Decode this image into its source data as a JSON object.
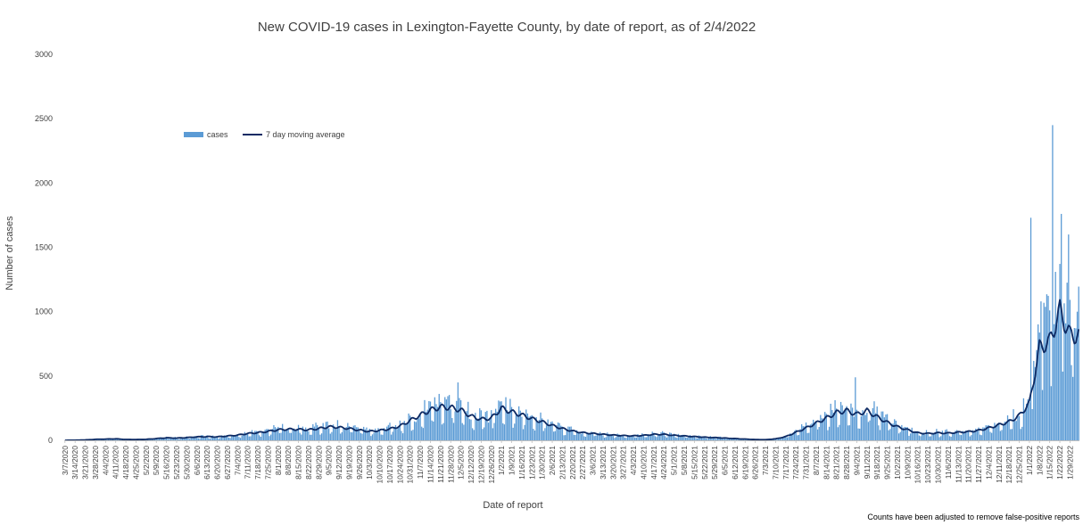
{
  "chart_data": {
    "type": "bar",
    "title": "New COVID-19 cases in Lexington-Fayette County, by date of report, as of 2/4/2022",
    "xlabel": "Date of report",
    "ylabel": "Number of cases",
    "ylim": [
      0,
      3000
    ],
    "yticks": [
      "0",
      "500",
      "1000",
      "1500",
      "2000",
      "2500",
      "3000"
    ],
    "footnote": "Counts have been adjusted to remove false-positive reports",
    "legend": {
      "placement": "upper-left",
      "bar_label": "cases",
      "line_label": "7 day moving average"
    },
    "colors": {
      "bars": "#5b9bd5",
      "line": "#0d2a63"
    },
    "x_start": "3/7/2020",
    "x_end": "2/4/2022",
    "xtick_labels": [
      "3/7/2020",
      "3/14/2020",
      "3/21/2020",
      "3/28/2020",
      "4/4/2020",
      "4/11/2020",
      "4/18/2020",
      "4/25/2020",
      "5/2/2020",
      "5/9/2020",
      "5/16/2020",
      "5/23/2020",
      "5/30/2020",
      "6/6/2020",
      "6/13/2020",
      "6/20/2020",
      "6/27/2020",
      "7/4/2020",
      "7/11/2020",
      "7/18/2020",
      "7/25/2020",
      "8/1/2020",
      "8/8/2020",
      "8/15/2020",
      "8/22/2020",
      "8/29/2020",
      "9/5/2020",
      "9/12/2020",
      "9/19/2020",
      "9/26/2020",
      "10/3/2020",
      "10/10/2020",
      "10/17/2020",
      "10/24/2020",
      "10/31/2020",
      "11/7/2020",
      "11/14/2020",
      "11/21/2020",
      "11/28/2020",
      "12/5/2020",
      "12/12/2020",
      "12/19/2020",
      "12/26/2020",
      "1/2/2021",
      "1/9/2021",
      "1/16/2021",
      "1/23/2021",
      "1/30/2021",
      "2/6/2021",
      "2/13/2021",
      "2/20/2021",
      "2/27/2021",
      "3/6/2021",
      "3/13/2021",
      "3/20/2021",
      "3/27/2021",
      "4/3/2021",
      "4/10/2021",
      "4/17/2021",
      "4/24/2021",
      "5/1/2021",
      "5/8/2021",
      "5/15/2021",
      "5/22/2021",
      "5/29/2021",
      "6/5/2021",
      "6/12/2021",
      "6/19/2021",
      "6/26/2021",
      "7/3/2021",
      "7/10/2021",
      "7/17/2021",
      "7/24/2021",
      "7/31/2021",
      "8/7/2021",
      "8/14/2021",
      "8/21/2021",
      "8/28/2021",
      "9/4/2021",
      "9/11/2021",
      "9/18/2021",
      "9/25/2021",
      "10/2/2021",
      "10/9/2021",
      "10/16/2021",
      "10/23/2021",
      "10/30/2021",
      "11/6/2021",
      "11/13/2021",
      "11/20/2021",
      "11/27/2021",
      "12/4/2021",
      "12/11/2021",
      "12/18/2021",
      "12/25/2021",
      "1/1/2022",
      "1/8/2022",
      "1/15/2022",
      "1/22/2022",
      "1/29/2022"
    ],
    "weekly_anchor_cases": [
      0,
      1,
      3,
      8,
      10,
      12,
      7,
      6,
      8,
      14,
      20,
      18,
      22,
      28,
      30,
      28,
      35,
      42,
      55,
      62,
      72,
      85,
      90,
      88,
      85,
      95,
      110,
      105,
      95,
      82,
      72,
      80,
      92,
      115,
      160,
      205,
      245,
      270,
      265,
      245,
      195,
      170,
      180,
      260,
      230,
      205,
      175,
      150,
      120,
      95,
      75,
      62,
      55,
      48,
      42,
      38,
      36,
      40,
      48,
      48,
      40,
      35,
      30,
      25,
      22,
      18,
      14,
      10,
      6,
      5,
      12,
      30,
      65,
      100,
      140,
      180,
      225,
      240,
      210,
      240,
      190,
      145,
      110,
      85,
      60,
      55,
      60,
      58,
      65,
      70,
      80,
      100,
      125,
      150,
      200,
      300,
      750,
      880,
      1000,
      950
    ],
    "weekly_anchor_avg": [
      0,
      1,
      3,
      8,
      10,
      12,
      7,
      6,
      8,
      14,
      20,
      18,
      22,
      28,
      30,
      28,
      35,
      42,
      55,
      62,
      72,
      85,
      90,
      88,
      85,
      95,
      110,
      105,
      95,
      82,
      72,
      80,
      92,
      115,
      160,
      205,
      245,
      270,
      265,
      245,
      195,
      170,
      180,
      260,
      230,
      205,
      175,
      150,
      120,
      95,
      75,
      62,
      55,
      48,
      42,
      38,
      36,
      40,
      48,
      48,
      40,
      35,
      30,
      25,
      22,
      18,
      14,
      10,
      6,
      5,
      12,
      30,
      65,
      100,
      140,
      180,
      225,
      240,
      210,
      240,
      190,
      145,
      110,
      85,
      60,
      55,
      60,
      58,
      65,
      70,
      80,
      100,
      125,
      150,
      200,
      300,
      750,
      800,
      1050,
      850
    ],
    "series": [
      {
        "name": "cases",
        "kind": "bar",
        "data": "daily values (weekly-resolution estimates expanded by script)",
        "peak": {
          "date": "1/17/2022",
          "value": 2450
        }
      },
      {
        "name": "7 day moving average",
        "kind": "line",
        "peak": {
          "date": "1/24/2022",
          "value": 1100
        }
      }
    ],
    "notable_points": [
      {
        "date": "12/3/2020",
        "value": 450
      },
      {
        "date": "1/2/2022",
        "value": 1730
      },
      {
        "date": "1/9/2022",
        "value": 1080
      },
      {
        "date": "1/17/2022",
        "value": 2450
      },
      {
        "date": "1/23/2022",
        "value": 1760
      },
      {
        "date": "1/28/2022",
        "value": 1600
      },
      {
        "date": "2/3/2022",
        "value": 1000
      },
      {
        "date": "9/3/2021",
        "value": 490
      }
    ]
  }
}
